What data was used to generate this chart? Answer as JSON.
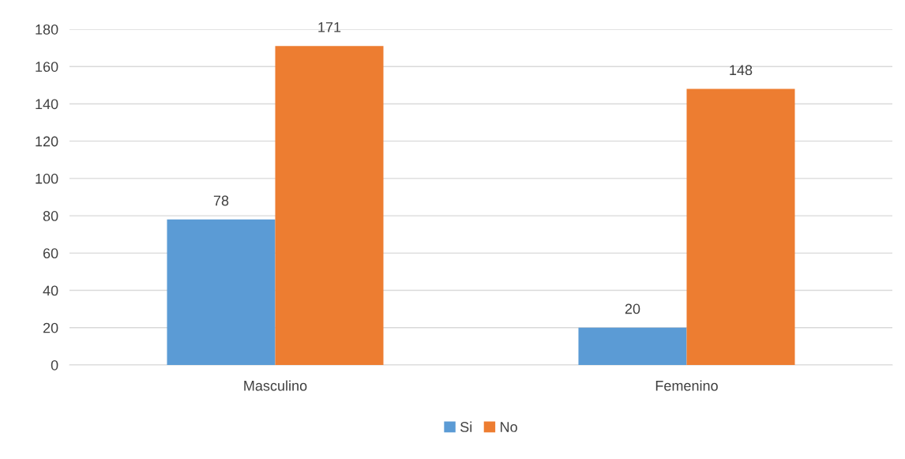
{
  "chart_data": {
    "type": "bar",
    "categories": [
      "Masculino",
      "Femenino"
    ],
    "series": [
      {
        "name": "Si",
        "color": "#5b9bd5",
        "values": [
          78,
          20
        ]
      },
      {
        "name": "No",
        "color": "#ed7d31",
        "values": [
          171,
          148
        ]
      }
    ],
    "ylim": [
      0,
      180
    ],
    "yticks": [
      0,
      20,
      40,
      60,
      80,
      100,
      120,
      140,
      160,
      180
    ],
    "grid": "y",
    "legend": "bottom",
    "data_labels": true
  }
}
